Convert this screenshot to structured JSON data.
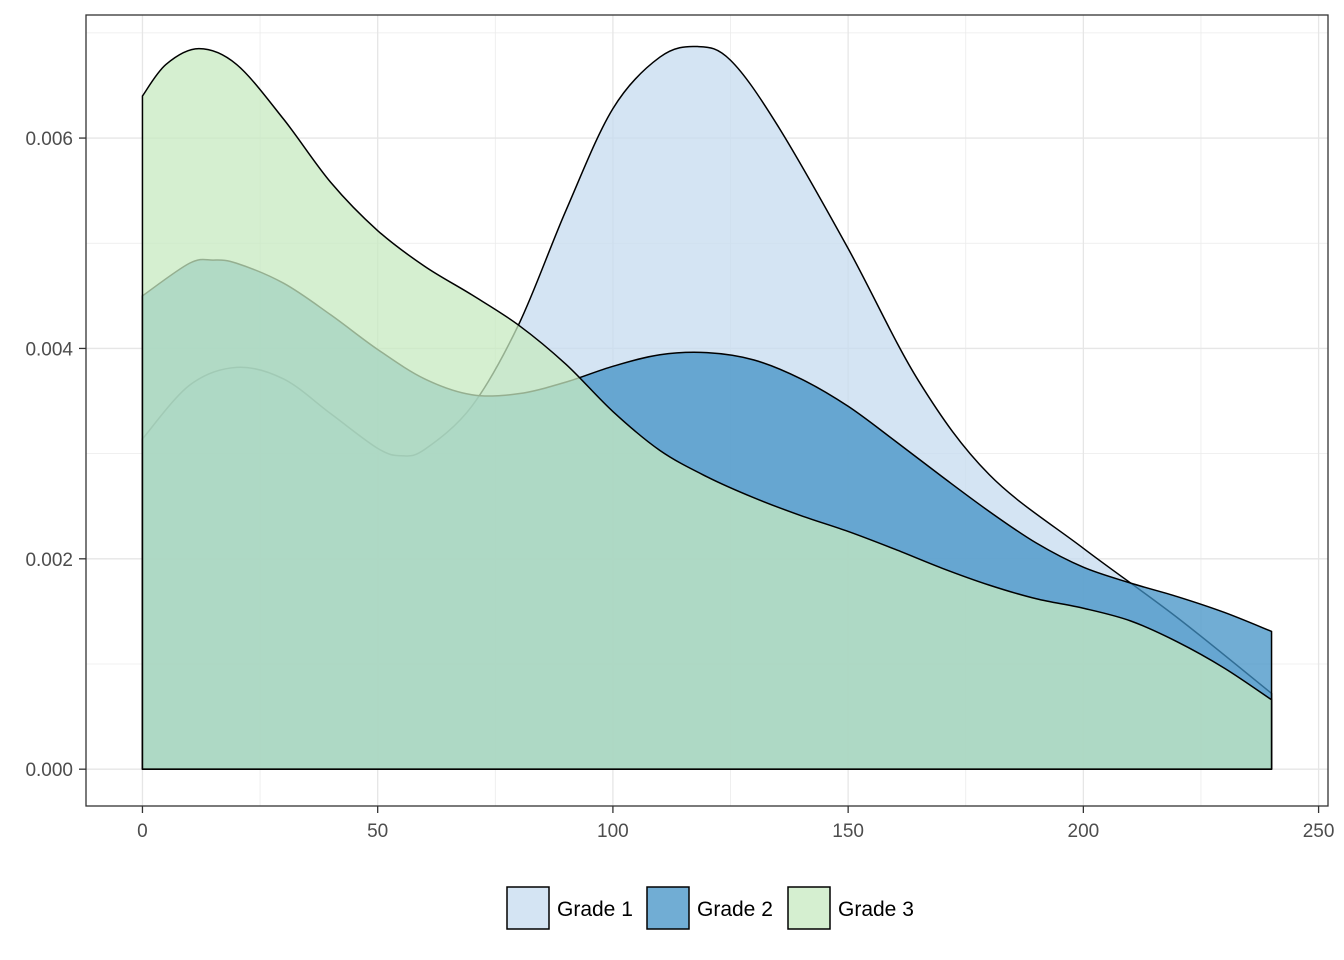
{
  "chart_data": {
    "type": "area",
    "subtype": "density",
    "title": "",
    "xlabel": "",
    "ylabel": "",
    "xlim": [
      -12,
      252
    ],
    "ylim": [
      -0.00035,
      0.00717
    ],
    "x_ticks": [
      0,
      50,
      100,
      150,
      200,
      250
    ],
    "x_tick_labels": [
      "0",
      "50",
      "100",
      "150",
      "200",
      "250"
    ],
    "y_ticks": [
      0.0,
      0.002,
      0.004,
      0.006
    ],
    "y_tick_labels": [
      "0.000",
      "0.002",
      "0.004",
      "0.006"
    ],
    "grid": true,
    "legend_position": "bottom",
    "series": [
      {
        "name": "Grade 1",
        "color": "#c6dbef",
        "x": [
          0,
          10,
          20,
          30,
          40,
          50,
          55,
          60,
          70,
          80,
          90,
          100,
          110,
          118,
          125,
          135,
          150,
          165,
          180,
          200,
          220,
          240
        ],
        "y": [
          0.00314,
          0.00365,
          0.00382,
          0.00371,
          0.00338,
          0.00305,
          0.00298,
          0.00304,
          0.00345,
          0.00423,
          0.00531,
          0.00628,
          0.00677,
          0.00687,
          0.00674,
          0.00612,
          0.00495,
          0.00369,
          0.0028,
          0.0021,
          0.00144,
          0.00072
        ]
      },
      {
        "name": "Grade 2",
        "color": "#4292c6",
        "x": [
          0,
          10,
          15,
          20,
          30,
          40,
          50,
          60,
          70,
          80,
          90,
          100,
          110,
          120,
          130,
          140,
          150,
          160,
          170,
          180,
          190,
          200,
          210,
          220,
          230,
          240
        ],
        "y": [
          0.0045,
          0.00481,
          0.00484,
          0.00481,
          0.00462,
          0.00432,
          0.00399,
          0.00371,
          0.00356,
          0.00357,
          0.00368,
          0.00383,
          0.00394,
          0.00396,
          0.00389,
          0.00371,
          0.00345,
          0.00312,
          0.00278,
          0.00245,
          0.00215,
          0.00192,
          0.00177,
          0.00164,
          0.00149,
          0.00131
        ]
      },
      {
        "name": "Grade 3",
        "color": "#c7e9c0",
        "x": [
          0,
          5,
          12,
          20,
          30,
          40,
          50,
          60,
          70,
          80,
          90,
          100,
          110,
          120,
          130,
          140,
          150,
          160,
          170,
          180,
          190,
          200,
          210,
          220,
          230,
          240
        ],
        "y": [
          0.0064,
          0.0067,
          0.00685,
          0.0067,
          0.00618,
          0.00558,
          0.00512,
          0.00478,
          0.00451,
          0.00422,
          0.00385,
          0.0034,
          0.00303,
          0.00278,
          0.00258,
          0.00241,
          0.00226,
          0.00209,
          0.00191,
          0.00175,
          0.00162,
          0.00153,
          0.00141,
          0.00121,
          0.00096,
          0.00066
        ]
      }
    ]
  }
}
